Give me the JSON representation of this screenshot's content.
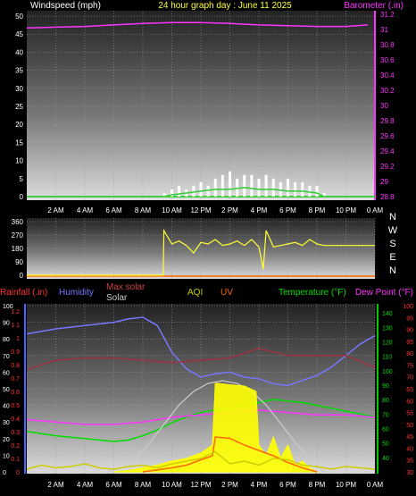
{
  "chart_data": [
    {
      "type": "line",
      "panel": "wind-barometer",
      "title": "24 hour graph day : June 11 2025",
      "ylabel_left": "Windspeed (mph)",
      "ylabel_right": "Barometer (.in)",
      "ylim_left": [
        0,
        50
      ],
      "ylim_right": [
        28.8,
        31.2
      ],
      "yticks_left": [
        "0",
        "5",
        "10",
        "15",
        "20",
        "25",
        "30",
        "35",
        "40",
        "45",
        "50"
      ],
      "yticks_right": [
        "28.8",
        "29",
        "29.2",
        "29.4",
        "29.6",
        "29.8",
        "30",
        "30.2",
        "30.4",
        "30.6",
        "30.8",
        "31",
        "31.2"
      ],
      "xlim": [
        0,
        24
      ],
      "xticks": [
        "2 AM",
        "4 AM",
        "6 AM",
        "8 AM",
        "10 AM",
        "12 PM",
        "2 PM",
        "4 PM",
        "6 PM",
        "8 PM",
        "10 PM",
        "0 AM"
      ],
      "series": [
        {
          "name": "Barometer (.in)",
          "axis": "right",
          "color": "#ff33ff",
          "x": [
            0,
            2,
            4,
            6,
            8,
            10,
            12,
            14,
            16,
            18,
            20,
            22,
            23.5
          ],
          "y": [
            31.02,
            31.03,
            31.04,
            31.06,
            31.08,
            31.09,
            31.09,
            31.08,
            31.06,
            31.05,
            31.04,
            31.04,
            31.06
          ]
        },
        {
          "name": "Wind gust",
          "axis": "left",
          "color": "#ffffff",
          "x": [
            9.5,
            10,
            10.5,
            11,
            11.5,
            12,
            12.5,
            13,
            13.5,
            14,
            14.5,
            15,
            15.5,
            16,
            16.5,
            17,
            17.5,
            18,
            18.5,
            19,
            19.5,
            20,
            20.5
          ],
          "y": [
            1,
            2,
            3,
            2,
            3,
            4,
            3,
            5,
            6,
            7,
            5,
            6,
            6,
            5,
            6,
            5,
            4,
            5,
            4,
            4,
            3,
            3,
            1
          ]
        },
        {
          "name": "Wind speed",
          "axis": "left",
          "color": "#33cc33",
          "x": [
            0,
            9.5,
            10,
            11,
            12,
            13,
            14,
            15,
            16,
            17,
            18,
            19,
            20,
            20.5,
            24
          ],
          "y": [
            0,
            0,
            0.5,
            1,
            1.5,
            2,
            2,
            2.5,
            2,
            2,
            1.5,
            1.5,
            1,
            0,
            0
          ]
        }
      ]
    },
    {
      "type": "line",
      "panel": "wind-direction",
      "ylim": [
        0,
        360
      ],
      "yticks": [
        "0",
        "90",
        "180",
        "270",
        "360"
      ],
      "compass_labels": [
        "N",
        "W",
        "S",
        "E",
        "N"
      ],
      "series": [
        {
          "name": "Wind direction",
          "color": "#ffff33",
          "x": [
            0,
            9.4,
            9.45,
            10,
            10.5,
            11,
            11.5,
            12,
            12.5,
            13,
            13.5,
            14,
            14.5,
            15,
            15.5,
            16,
            16.3,
            16.5,
            17,
            17.5,
            18,
            18.5,
            19,
            19.5,
            20,
            20.5,
            24
          ],
          "y": [
            0,
            0,
            300,
            210,
            230,
            200,
            150,
            220,
            210,
            240,
            200,
            210,
            230,
            200,
            240,
            190,
            40,
            300,
            190,
            200,
            210,
            220,
            200,
            240,
            210,
            200,
            200
          ]
        }
      ]
    },
    {
      "type": "line",
      "panel": "weather",
      "labels_left": [
        "Rainfall (.in)",
        "Humidity",
        "Max solar",
        "Solar",
        "AQI",
        "UV"
      ],
      "labels_right": [
        "Temperature (°F)",
        "Dew Point (°F)"
      ],
      "ylim_rain": [
        0,
        1.2
      ],
      "ylim_humidity": [
        0,
        100
      ],
      "ylim_temp": [
        30,
        145
      ],
      "ylim_dew": [
        30,
        100
      ],
      "yticks_rain": [
        "0",
        "0.1",
        "0.2",
        "0.3",
        "0.4",
        "0.5",
        "0.6",
        "0.7",
        "0.8",
        "0.9",
        "1",
        "1.1",
        "1.2"
      ],
      "yticks_humidity": [
        "0",
        "10",
        "20",
        "30",
        "40",
        "50",
        "60",
        "70",
        "80",
        "90",
        "100"
      ],
      "yticks_temp": [
        "40",
        "50",
        "60",
        "70",
        "80",
        "90",
        "100",
        "110",
        "120",
        "130",
        "140"
      ],
      "yticks_dew": [
        "30",
        "35",
        "40",
        "45",
        "50",
        "55",
        "60",
        "65",
        "70",
        "75",
        "80",
        "85",
        "90",
        "95",
        "100"
      ],
      "series": [
        {
          "name": "Humidity",
          "color": "#7777ff",
          "x": [
            0,
            2,
            4,
            6,
            7,
            8,
            9,
            10,
            11,
            12,
            13,
            14,
            15,
            16,
            17,
            18,
            19,
            20,
            21,
            22,
            23,
            24
          ],
          "y": [
            83,
            86,
            88,
            90,
            92,
            93,
            88,
            72,
            62,
            57,
            59,
            60,
            57,
            56,
            53,
            52,
            55,
            58,
            63,
            70,
            77,
            82
          ]
        },
        {
          "name": "Temperature (°F)",
          "color": "#00dd00",
          "x": [
            0,
            2,
            4,
            6,
            7,
            8,
            9,
            10,
            11,
            12,
            13,
            14,
            15,
            16,
            17,
            18,
            19,
            20,
            21,
            22,
            23,
            24
          ],
          "y": [
            58,
            55,
            53,
            51,
            52,
            55,
            59,
            64,
            68,
            71,
            73,
            74,
            76,
            78,
            80,
            79,
            78,
            76,
            74,
            72,
            70,
            68
          ]
        },
        {
          "name": "Dew Point (°F)",
          "color": "#ff33ff",
          "x": [
            0,
            2,
            4,
            6,
            8,
            10,
            12,
            14,
            16,
            18,
            20,
            22,
            24
          ],
          "y": [
            52,
            51,
            50,
            50,
            51,
            53,
            54,
            55,
            56,
            55,
            54,
            54,
            53
          ]
        },
        {
          "name": "Max solar",
          "color": "#cccccc",
          "x": [
            5.5,
            6.5,
            7.5,
            8.5,
            9.5,
            10.5,
            11.5,
            12.5,
            13.5,
            14.5,
            15.5,
            16.5,
            17.5,
            18.5,
            19.5,
            20.5
          ],
          "y": [
            0,
            0.03,
            0.1,
            0.22,
            0.36,
            0.5,
            0.6,
            0.66,
            0.68,
            0.66,
            0.6,
            0.5,
            0.36,
            0.22,
            0.1,
            0
          ]
        },
        {
          "name": "Solar",
          "color": "#ffff00",
          "x": [
            6,
            7,
            8,
            9,
            10,
            11,
            12,
            12.8,
            13,
            13.2,
            14,
            15,
            15.8,
            16,
            16.5,
            17,
            17.5,
            18,
            18.5,
            19,
            19.5,
            20
          ],
          "y": [
            0,
            0.01,
            0.03,
            0.05,
            0.08,
            0.1,
            0.14,
            0.2,
            0.66,
            0.66,
            0.65,
            0.64,
            0.6,
            0.2,
            0.12,
            0.26,
            0.1,
            0.2,
            0.05,
            0.08,
            0.03,
            0
          ]
        },
        {
          "name": "UV",
          "color": "#ff6600",
          "x": [
            8,
            10,
            11,
            12,
            12.8,
            13,
            14,
            15,
            16,
            17,
            18,
            19,
            20
          ],
          "y": [
            0,
            0.03,
            0.05,
            0.09,
            0.12,
            0.26,
            0.25,
            0.2,
            0.16,
            0.12,
            0.07,
            0.03,
            0
          ]
        },
        {
          "name": "AQI",
          "color": "#cccc00",
          "x": [
            0,
            1,
            2,
            3,
            4,
            5,
            6,
            7,
            8,
            9,
            10,
            11,
            12,
            13,
            14,
            15,
            16,
            17,
            18,
            19,
            20,
            21,
            22,
            23,
            24
          ],
          "y": [
            0.02,
            0.05,
            0.03,
            0.04,
            0.06,
            0.03,
            0.02,
            0.04,
            0.05,
            0.03,
            0.06,
            0.08,
            0.1,
            0.15,
            0.06,
            0.08,
            0.05,
            0.1,
            0.09,
            0.05,
            0.04,
            0.02,
            0.04,
            0.03,
            0.02
          ]
        },
        {
          "name": "Dark red",
          "color": "#993344",
          "x": [
            0,
            2,
            4,
            6,
            8,
            10,
            12,
            14,
            16,
            18,
            20,
            22,
            24
          ],
          "y": [
            73,
            77,
            78,
            78,
            77,
            76,
            77,
            78,
            82,
            79,
            79,
            79,
            74
          ]
        }
      ]
    }
  ]
}
